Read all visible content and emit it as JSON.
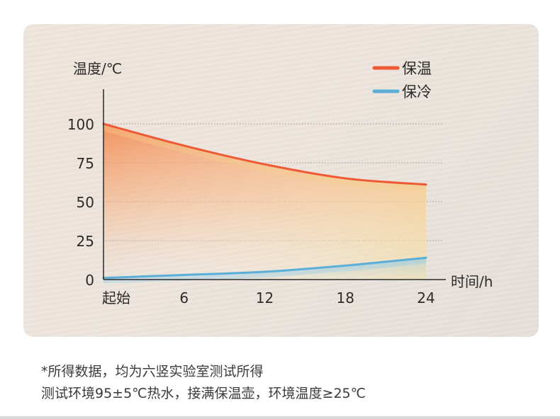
{
  "chart_data": {
    "type": "line",
    "ylabel": "温度/℃",
    "xlabel": "时间/h",
    "x": [
      0,
      6,
      12,
      18,
      24
    ],
    "x_tick_labels": [
      "起始",
      "6",
      "12",
      "18",
      "24"
    ],
    "y_ticks": [
      0,
      25,
      50,
      75,
      100
    ],
    "ylim": [
      0,
      100
    ],
    "xlim": [
      0,
      24
    ],
    "grid": "horizontal dotted",
    "legend_position": "top-right",
    "series": [
      {
        "name": "保温",
        "color": "#ee5a35",
        "values": [
          100,
          86,
          74,
          65,
          61
        ]
      },
      {
        "name": "保冷",
        "color": "#5aaed8",
        "values": [
          1,
          3,
          5,
          9,
          14
        ]
      }
    ]
  },
  "footnote": {
    "line1": "*所得数据，均为六竖实验室测试所得",
    "line2": "测试环境95±5℃热水，接满保温壶，环境温度≥25℃"
  }
}
